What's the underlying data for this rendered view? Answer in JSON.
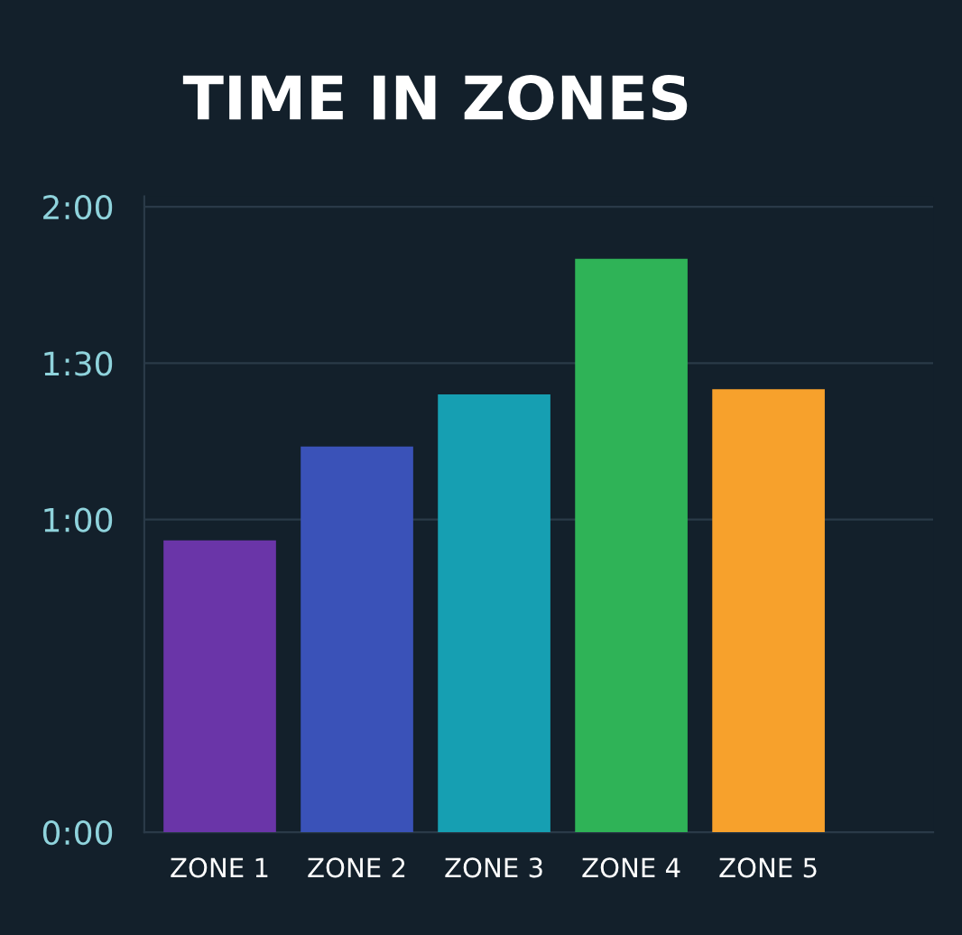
{
  "chart_data": {
    "type": "bar",
    "title": "TIME IN ZONES",
    "categories": [
      "ZONE 1",
      "ZONE 2",
      "ZONE 3",
      "ZONE 4",
      "ZONE 5"
    ],
    "values": [
      56,
      74,
      84,
      110,
      85
    ],
    "colors": [
      "#6a35a8",
      "#3a52b8",
      "#169fb2",
      "#2fb357",
      "#f7a12c"
    ],
    "ylim": [
      0,
      122
    ],
    "yticks": [
      {
        "value": 0,
        "label": "0:00"
      },
      {
        "value": 60,
        "label": "1:00"
      },
      {
        "value": 90,
        "label": "1:30"
      },
      {
        "value": 120,
        "label": "2:00"
      }
    ],
    "grid": "y"
  }
}
